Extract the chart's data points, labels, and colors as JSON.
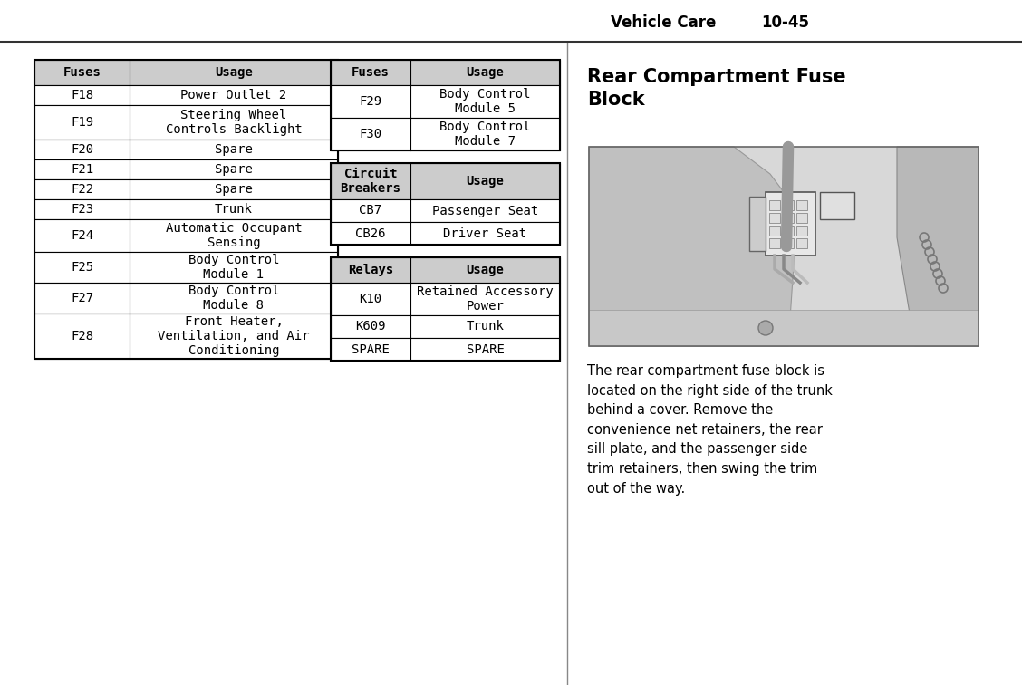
{
  "header_text": "Vehicle Care",
  "header_page": "10-45",
  "table1_title": [
    "Fuses",
    "Usage"
  ],
  "table1_rows": [
    [
      "F18",
      "Power Outlet 2"
    ],
    [
      "F19",
      "Steering Wheel\nControls Backlight"
    ],
    [
      "F20",
      "Spare"
    ],
    [
      "F21",
      "Spare"
    ],
    [
      "F22",
      "Spare"
    ],
    [
      "F23",
      "Trunk"
    ],
    [
      "F24",
      "Automatic Occupant\nSensing"
    ],
    [
      "F25",
      "Body Control\nModule 1"
    ],
    [
      "F27",
      "Body Control\nModule 8"
    ],
    [
      "F28",
      "Front Heater,\nVentilation, and Air\nConditioning"
    ]
  ],
  "table2_title": [
    "Fuses",
    "Usage"
  ],
  "table2_rows": [
    [
      "F29",
      "Body Control\nModule 5"
    ],
    [
      "F30",
      "Body Control\nModule 7"
    ]
  ],
  "table3_title": [
    "Circuit\nBreakers",
    "Usage"
  ],
  "table3_rows": [
    [
      "CB7",
      "Passenger Seat"
    ],
    [
      "CB26",
      "Driver Seat"
    ]
  ],
  "table4_title": [
    "Relays",
    "Usage"
  ],
  "table4_rows": [
    [
      "K10",
      "Retained Accessory\nPower"
    ],
    [
      "K609",
      "Trunk"
    ],
    [
      "SPARE",
      "SPARE"
    ]
  ],
  "section_title": "Rear Compartment Fuse\nBlock",
  "description": "The rear compartment fuse block is\nlocated on the right side of the trunk\nbehind a cover. Remove the\nconvenience net retainers, the rear\nsill plate, and the passenger side\ntrim retainers, then swing the trim\nout of the way.",
  "bg_color": "#ffffff",
  "border_color": "#000000",
  "header_bg": "#cccccc",
  "text_color": "#000000"
}
